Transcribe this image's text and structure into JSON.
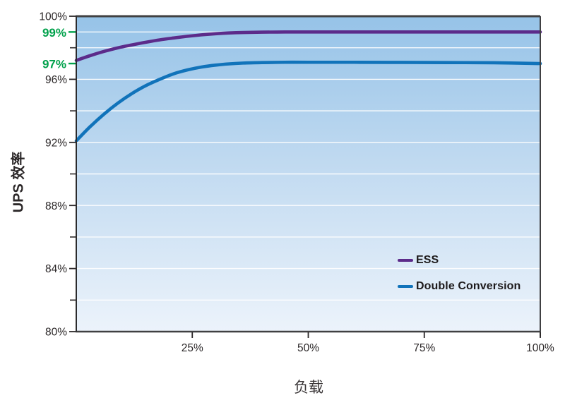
{
  "chart_data": {
    "type": "line",
    "title": "",
    "xlabel": "负载",
    "ylabel": "UPS 效率",
    "xlim": [
      0,
      100
    ],
    "ylim": [
      80,
      100
    ],
    "grid": true,
    "gridlines_at": [
      82,
      84,
      86,
      88,
      90,
      92,
      94,
      96,
      98,
      99
    ],
    "x_ticks": [
      {
        "value": 25,
        "label": "25%"
      },
      {
        "value": 50,
        "label": "50%"
      },
      {
        "value": 75,
        "label": "75%"
      },
      {
        "value": 100,
        "label": "100%"
      }
    ],
    "y_ticks_major": [
      {
        "value": 80,
        "label": "80%"
      },
      {
        "value": 84,
        "label": "84%"
      },
      {
        "value": 88,
        "label": "88%"
      },
      {
        "value": 92,
        "label": "92%"
      },
      {
        "value": 96,
        "label": "96%"
      },
      {
        "value": 100,
        "label": "100%"
      }
    ],
    "y_ticks_minor": [
      82,
      86,
      90,
      94,
      98
    ],
    "y_highlight_labels": [
      {
        "value": 99,
        "label": "99%"
      },
      {
        "value": 97,
        "label": "97%"
      }
    ],
    "x": [
      0,
      3,
      6,
      9,
      12,
      15,
      18,
      21,
      24,
      27,
      30,
      33,
      36,
      40,
      45,
      50,
      60,
      70,
      80,
      90,
      100
    ],
    "series": [
      {
        "name": "ESS",
        "color": "#5C2B8A",
        "peak_efficiency": "99%",
        "y": [
          97.2,
          97.5,
          97.77,
          98.0,
          98.18,
          98.35,
          98.5,
          98.62,
          98.73,
          98.82,
          98.89,
          98.94,
          98.97,
          98.99,
          99.0,
          99.0,
          99.0,
          99.0,
          99.0,
          99.0,
          99.0
        ]
      },
      {
        "name": "Double Conversion",
        "color": "#1173BA",
        "peak_efficiency": "97%",
        "y": [
          92.1,
          93.0,
          93.8,
          94.5,
          95.1,
          95.6,
          96.0,
          96.35,
          96.6,
          96.78,
          96.9,
          96.98,
          97.03,
          97.06,
          97.08,
          97.08,
          97.08,
          97.07,
          97.06,
          97.05,
          97.0
        ]
      }
    ],
    "legend": {
      "position": "inside-right",
      "entries": [
        {
          "name": "ESS",
          "color": "#5C2B8A"
        },
        {
          "name": "Double Conversion",
          "color": "#1173BA"
        }
      ]
    },
    "colors": {
      "highlight_green": "#00A14B",
      "text": "#2B2728",
      "axis": "#404042",
      "gridline": "#FFFFFF",
      "plot_bg_top": "#96C3E8",
      "plot_bg_mid": "#BFD9F0",
      "plot_bg_bottom": "#ECF3FB",
      "page_bg": "#FFFFFF"
    }
  }
}
